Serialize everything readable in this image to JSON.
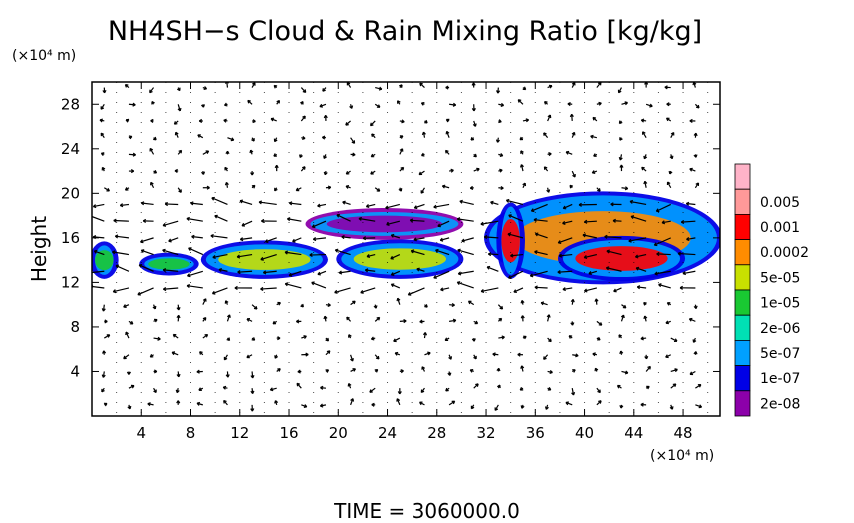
{
  "chart_data": {
    "type": "heatmap",
    "title": "NH4SH−s Cloud & Rain Mixing Ratio [kg/kg]",
    "y_unit_label": "(×10⁴ m)",
    "x_unit_label": "(×10⁴ m)",
    "ylabel": "Height",
    "xlabel": "",
    "footer": "TIME = 3060000.0",
    "xlim": [
      0,
      51
    ],
    "ylim": [
      0,
      30
    ],
    "x_ticks": [
      "4",
      "8",
      "12",
      "16",
      "20",
      "24",
      "28",
      "32",
      "36",
      "40",
      "44",
      "48"
    ],
    "x_tick_values": [
      4,
      8,
      12,
      16,
      20,
      24,
      28,
      32,
      36,
      40,
      44,
      48
    ],
    "y_ticks": [
      "4",
      "8",
      "12",
      "16",
      "20",
      "24",
      "28"
    ],
    "y_tick_values": [
      4,
      8,
      12,
      16,
      20,
      24,
      28
    ],
    "grid": true,
    "legend_position": "right",
    "colorbar": {
      "labels": [
        "0.005",
        "0.001",
        "0.0002",
        "5e-05",
        "1e-05",
        "2e-06",
        "5e-07",
        "1e-07",
        "2e-08"
      ],
      "colors": [
        "#ff9999",
        "#ff0000",
        "#ff8c00",
        "#c8e000",
        "#19c832",
        "#00e0b4",
        "#00a0ff",
        "#0000e6",
        "#8c00aa"
      ]
    },
    "cloud_regions": [
      {
        "x": [
          0.0,
          2.0
        ],
        "y": [
          12.5,
          15.5
        ],
        "level": "1e-05"
      },
      {
        "x": [
          4.0,
          8.5
        ],
        "y": [
          12.8,
          14.5
        ],
        "level": "1e-05"
      },
      {
        "x": [
          9.0,
          19.0
        ],
        "y": [
          12.5,
          15.6
        ],
        "level": "5e-05"
      },
      {
        "x": [
          20.0,
          30.0
        ],
        "y": [
          12.5,
          15.7
        ],
        "level": "5e-05"
      },
      {
        "x": [
          17.5,
          30.0
        ],
        "y": [
          16.0,
          18.5
        ],
        "level": "2e-08"
      },
      {
        "x": [
          32.0,
          51.0
        ],
        "y": [
          12.0,
          20.0
        ],
        "level": "0.0002"
      },
      {
        "x": [
          33.0,
          35.0
        ],
        "y": [
          12.5,
          19.0
        ],
        "level": "0.001"
      },
      {
        "x": [
          38.0,
          48.0
        ],
        "y": [
          12.3,
          16.0
        ],
        "level": "0.001"
      }
    ]
  }
}
